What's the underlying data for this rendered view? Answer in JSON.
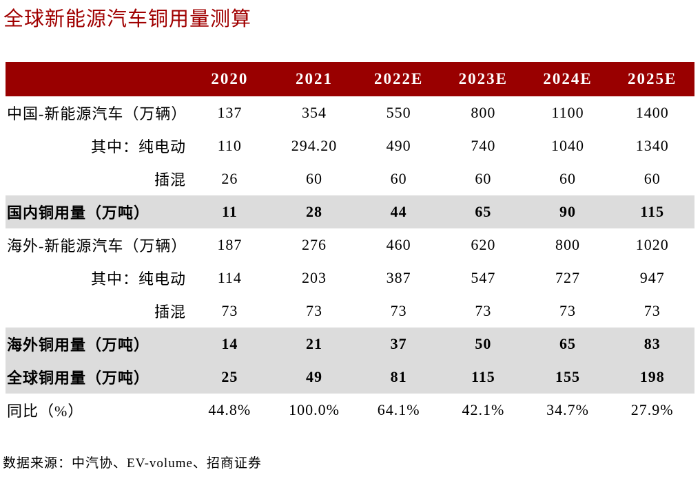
{
  "title": "全球新能源汽车铜用量测算",
  "source_note": "数据来源：中汽协、EV-volume、招商证券",
  "colors": {
    "title_text": "#a00000",
    "header_bg": "#990000",
    "header_text": "#ffffff",
    "highlight_row_bg": "#dcdcdc",
    "body_text": "#000000"
  },
  "table": {
    "columns": [
      "2020",
      "2021",
      "2022E",
      "2023E",
      "2024E",
      "2025E"
    ],
    "rows": [
      {
        "label": "中国-新能源汽车（万辆）",
        "values": [
          "137",
          "354",
          "550",
          "800",
          "1100",
          "1400"
        ]
      },
      {
        "label": "其中：纯电动",
        "values": [
          "110",
          "294.20",
          "490",
          "740",
          "1040",
          "1340"
        ]
      },
      {
        "label": "插混",
        "values": [
          "26",
          "60",
          "60",
          "60",
          "60",
          "60"
        ]
      },
      {
        "label": "国内铜用量（万吨）",
        "values": [
          "11",
          "28",
          "44",
          "65",
          "90",
          "115"
        ]
      },
      {
        "label": "海外-新能源汽车（万辆）",
        "values": [
          "187",
          "276",
          "460",
          "620",
          "800",
          "1020"
        ]
      },
      {
        "label": "其中：纯电动",
        "values": [
          "114",
          "203",
          "387",
          "547",
          "727",
          "947"
        ]
      },
      {
        "label": "插混",
        "values": [
          "73",
          "73",
          "73",
          "73",
          "73",
          "73"
        ]
      },
      {
        "label": "海外铜用量（万吨）",
        "values": [
          "14",
          "21",
          "37",
          "50",
          "65",
          "83"
        ]
      },
      {
        "label": "全球铜用量（万吨）",
        "values": [
          "25",
          "49",
          "81",
          "115",
          "155",
          "198"
        ]
      },
      {
        "label": "同比（%）",
        "values": [
          "44.8%",
          "100.0%",
          "64.1%",
          "42.1%",
          "34.7%",
          "27.9%"
        ]
      }
    ]
  }
}
